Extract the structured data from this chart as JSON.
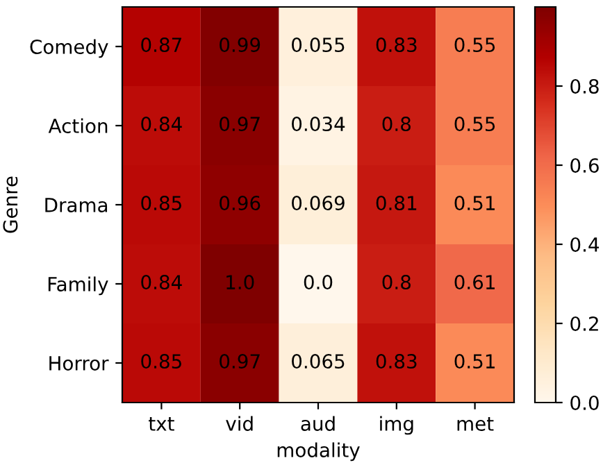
{
  "chart_data": {
    "type": "heatmap",
    "xlabel": "modality",
    "ylabel": "Genre",
    "categories": [
      "txt",
      "vid",
      "aud",
      "img",
      "met"
    ],
    "y_categories": [
      "Comedy",
      "Action",
      "Drama",
      "Family",
      "Horror"
    ],
    "cells": [
      [
        0.87,
        0.99,
        0.055,
        0.83,
        0.55
      ],
      [
        0.84,
        0.97,
        0.034,
        0.8,
        0.55
      ],
      [
        0.85,
        0.96,
        0.069,
        0.81,
        0.51
      ],
      [
        0.84,
        1.0,
        0.0,
        0.8,
        0.61
      ],
      [
        0.85,
        0.97,
        0.065,
        0.83,
        0.51
      ]
    ],
    "cell_labels": [
      [
        "0.87",
        "0.99",
        "0.055",
        "0.83",
        "0.55"
      ],
      [
        "0.84",
        "0.97",
        "0.034",
        "0.8",
        "0.55"
      ],
      [
        "0.85",
        "0.96",
        "0.069",
        "0.81",
        "0.51"
      ],
      [
        "0.84",
        "1.0",
        "0.0",
        "0.8",
        "0.61"
      ],
      [
        "0.85",
        "0.97",
        "0.065",
        "0.83",
        "0.51"
      ]
    ],
    "clim": [
      0,
      1.0
    ],
    "cticks": [
      {
        "value": 0,
        "label": "0.0"
      },
      0.2,
      0.4,
      0.6,
      0.8
    ]
  }
}
